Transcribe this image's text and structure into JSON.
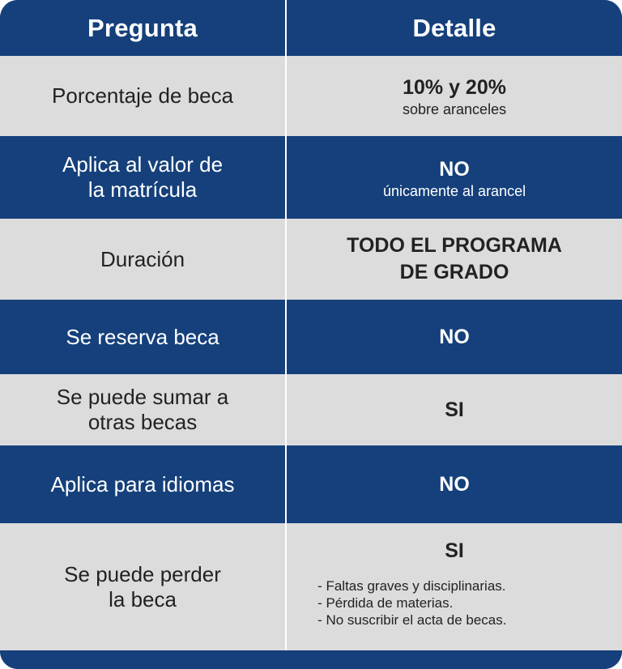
{
  "header": {
    "col1": "Pregunta",
    "col2": "Detalle"
  },
  "rows": [
    {
      "question": "Porcentaje de beca",
      "answer": "10% y 20%",
      "note": "sobre aranceles"
    },
    {
      "question": "Aplica al valor de\nla matrícula",
      "answer": "NO",
      "note": "únicamente al arancel"
    },
    {
      "question": "Duración",
      "answer": "TODO EL PROGRAMA\nDE GRADO"
    },
    {
      "question": "Se reserva beca",
      "answer": "NO"
    },
    {
      "question": "Se puede sumar a\notras becas",
      "answer": "SI"
    },
    {
      "question": "Aplica para idiomas",
      "answer": "NO"
    },
    {
      "question": "Se puede perder\nla beca",
      "answer": "SI",
      "list": [
        "- Faltas graves y disciplinarias.",
        "- Pérdida de materias.",
        "- No suscribir el acta de becas."
      ]
    }
  ],
  "colors": {
    "navy": "#15407b",
    "light_gray": "#dcdcdc",
    "text_dark": "#222222",
    "white": "#ffffff"
  }
}
